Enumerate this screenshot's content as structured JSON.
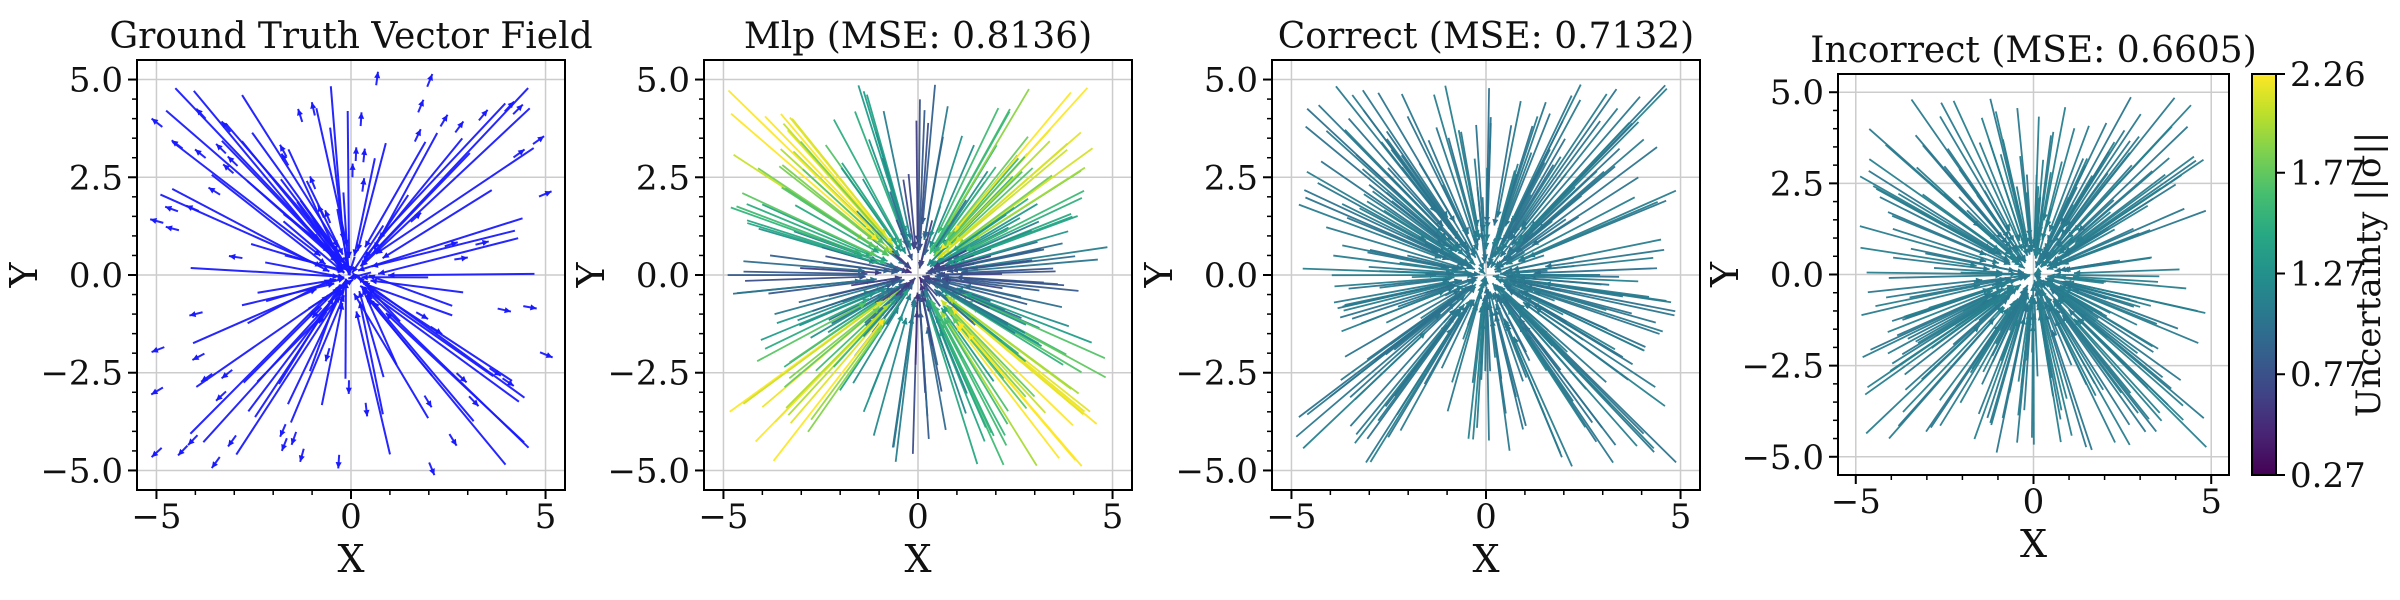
{
  "colors": {
    "ground_truth_arrows": "#1a1aff",
    "grid": "#cccccc",
    "colormap": "viridis"
  },
  "colorbar": {
    "label": "Uncertainty ||σ||",
    "ticks": [
      "0.27",
      "0.77",
      "1.27",
      "1.77",
      "2.26"
    ],
    "range": [
      0.27,
      2.26
    ]
  },
  "chart_data": [
    {
      "type": "quiver",
      "title": "Ground Truth Vector Field",
      "xlabel": "X",
      "ylabel": "Y",
      "xlim": [
        -5.5,
        5.5
      ],
      "ylim": [
        -5.5,
        5.5
      ],
      "xticks": [
        "−5",
        "0",
        "5"
      ],
      "yticks": [
        "5.0",
        "2.5",
        "0.0",
        "−2.5",
        "−5.0"
      ],
      "grid": true,
      "color_mode": "solid",
      "field": "outward radial vectors from scattered points in [-5, 5] × [-5, 5]; long arrows converge toward the origin"
    },
    {
      "type": "quiver",
      "title": "Mlp (MSE: 0.8136)",
      "xlabel": "X",
      "ylabel": "Y",
      "xlim": [
        -5.5,
        5.5
      ],
      "ylim": [
        -5.5,
        5.5
      ],
      "xticks": [
        "−5",
        "0",
        "5"
      ],
      "yticks": [
        "5.0",
        "2.5",
        "0.0",
        "−2.5",
        "−5.0"
      ],
      "grid": true,
      "color_mode": "uncertainty",
      "mse": 0.8136,
      "uncertainty_range": [
        0.3,
        2.26
      ],
      "field": "inward radial arrows; uncertainty highest along the diagonals, lowest near the origin"
    },
    {
      "type": "quiver",
      "title": "Correct (MSE: 0.7132)",
      "xlabel": "X",
      "ylabel": "Y",
      "xlim": [
        -5.5,
        5.5
      ],
      "ylim": [
        -5.5,
        5.5
      ],
      "xticks": [
        "−5",
        "0",
        "5"
      ],
      "yticks": [
        "5.0",
        "2.5",
        "0.0",
        "−2.5",
        "−5.0"
      ],
      "grid": true,
      "color_mode": "uncertainty",
      "mse": 0.7132,
      "uncertainty_range": [
        1.0,
        1.15
      ],
      "field": "inward radial arrows with nearly uniform uncertainty"
    },
    {
      "type": "quiver",
      "title": "Incorrect (MSE: 0.6605)",
      "xlabel": "X",
      "ylabel": "Y",
      "xlim": [
        -5.5,
        5.5
      ],
      "ylim": [
        -5.5,
        5.5
      ],
      "xticks": [
        "−5",
        "0",
        "5"
      ],
      "yticks": [
        "5.0",
        "2.5",
        "0.0",
        "−2.5",
        "−5.0"
      ],
      "grid": true,
      "color_mode": "uncertainty",
      "mse": 0.6605,
      "uncertainty_range": [
        1.05,
        1.15
      ],
      "field": "inward radial arrows with nearly uniform uncertainty"
    }
  ]
}
